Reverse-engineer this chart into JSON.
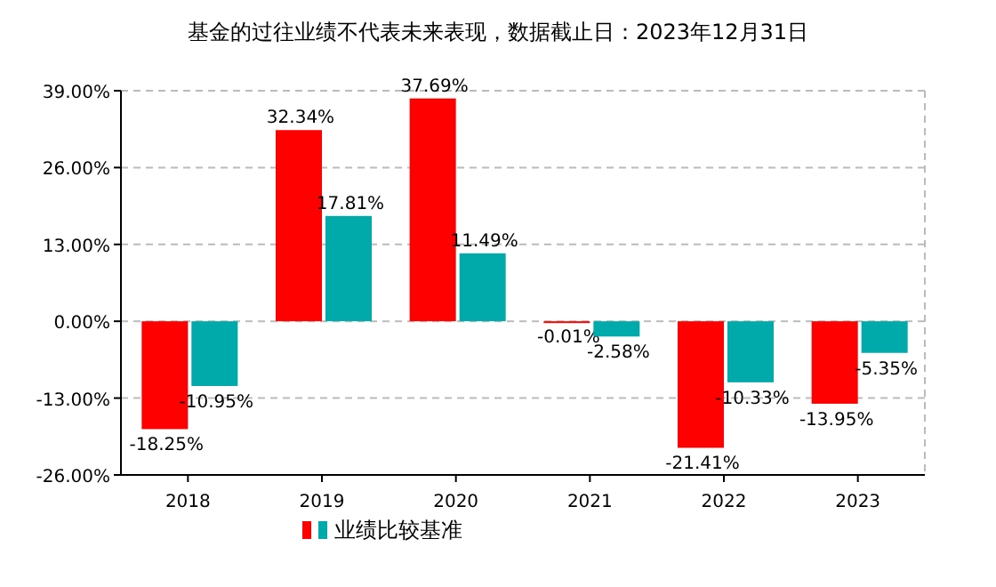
{
  "chart_data": {
    "type": "bar",
    "title": "基金的过往业绩不代表未来表现，数据截止日：2023年12月31日",
    "categories": [
      "2018",
      "2019",
      "2020",
      "2021",
      "2022",
      "2023"
    ],
    "series": [
      {
        "color": "#ff0000",
        "values": [
          -18.25,
          32.34,
          37.69,
          -0.01,
          -21.41,
          -13.95
        ],
        "value_labels": [
          "-18.25%",
          "32.34%",
          "37.69%",
          "-0.01%",
          "-21.41%",
          "-13.95%"
        ]
      },
      {
        "name": "业绩比较基准",
        "color": "#00aaaa",
        "values": [
          -10.95,
          17.81,
          11.49,
          -2.58,
          -10.33,
          -5.35
        ],
        "value_labels": [
          "-10.95%",
          "17.81%",
          "11.49%",
          "-2.58%",
          "-10.33%",
          "-5.35%"
        ]
      }
    ],
    "ylim": [
      -26,
      39
    ],
    "yticks": [
      {
        "value": -26,
        "label": "-26.00%"
      },
      {
        "value": -13,
        "label": "-13.00%"
      },
      {
        "value": 0,
        "label": "0.00%"
      },
      {
        "value": 13,
        "label": "13.00%"
      },
      {
        "value": 26,
        "label": "26.00%"
      },
      {
        "value": 39,
        "label": "39.00%"
      }
    ],
    "grid": "y",
    "legend": "bottom"
  }
}
